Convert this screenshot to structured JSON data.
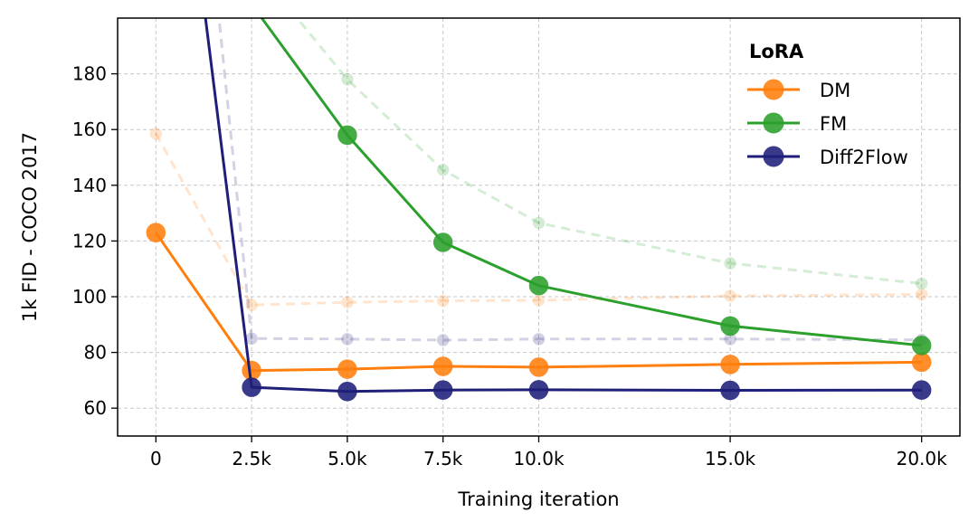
{
  "chart_data": {
    "type": "line",
    "xlabel": "Training iteration",
    "ylabel": "1k FID - COCO 2017",
    "xlim": [
      -1000,
      21000
    ],
    "ylim": [
      50,
      200
    ],
    "x_ticks": [
      0,
      2500,
      5000,
      7500,
      10000,
      15000,
      20000
    ],
    "x_tick_labels": [
      "0",
      "2.5k",
      "5.0k",
      "7.5k",
      "10.0k",
      "15.0k",
      "20.0k"
    ],
    "y_ticks": [
      60,
      80,
      100,
      120,
      140,
      160,
      180
    ],
    "y_tick_labels": [
      "60",
      "80",
      "100",
      "120",
      "140",
      "160",
      "180"
    ],
    "grid": true,
    "legend": {
      "title": "LoRA",
      "position": "top-right",
      "entries": [
        "DM",
        "FM",
        "Diff2Flow"
      ]
    },
    "series": [
      {
        "name": "DM",
        "color": "#ff7f0e",
        "style": "solid-markers",
        "x": [
          0,
          2500,
          5000,
          7500,
          10000,
          15000,
          20000
        ],
        "y": [
          123,
          73.5,
          74,
          75,
          74.7,
          75.7,
          76.5
        ]
      },
      {
        "name": "FM",
        "color": "#2ca02c",
        "style": "solid-markers",
        "x": [
          5000,
          7500,
          10000,
          15000,
          20000
        ],
        "y": [
          158,
          119.5,
          104,
          89.5,
          82.5
        ],
        "extends_above_axis_at_start": true
      },
      {
        "name": "Diff2Flow",
        "color": "#1f1f7a",
        "style": "solid-markers",
        "x": [
          2500,
          5000,
          7500,
          10000,
          15000,
          20000
        ],
        "y": [
          67.5,
          66,
          66.5,
          66.6,
          66.4,
          66.5
        ],
        "extends_above_axis_at_start": true
      },
      {
        "color": "#ff7f0e",
        "style": "dashed-faded",
        "x": [
          0,
          2500,
          5000,
          7500,
          10000,
          15000,
          20000
        ],
        "y": [
          158.5,
          97,
          98,
          98.5,
          98.7,
          100.3,
          100.8
        ]
      },
      {
        "color": "#2ca02c",
        "style": "dashed-faded",
        "x": [
          5000,
          7500,
          10000,
          15000,
          20000
        ],
        "y": [
          178,
          145.5,
          126.5,
          112,
          104.7
        ]
      },
      {
        "color": "#1f1f7a",
        "style": "dashed-faded",
        "x": [
          2500,
          5000,
          7500,
          10000,
          15000,
          20000
        ],
        "y": [
          85,
          84.8,
          84.4,
          84.8,
          84.8,
          84.5
        ]
      }
    ]
  }
}
